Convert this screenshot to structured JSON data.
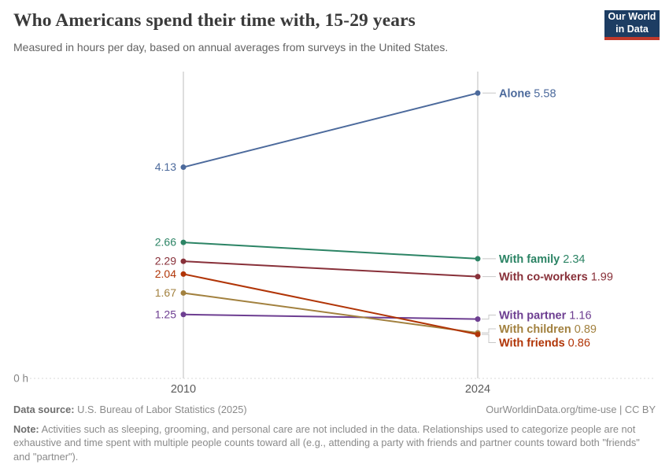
{
  "header": {
    "title": "Who Americans spend their time with, 15-29 years",
    "subtitle": "Measured in hours per day, based on annual averages from surveys in the United States.",
    "logo": {
      "line1": "Our World",
      "line2": "in Data",
      "bg_color": "#1d3d63",
      "bar_color": "#c0392b"
    }
  },
  "chart_data": {
    "type": "line",
    "x": [
      2010,
      2024
    ],
    "x_tick_labels": [
      "2010",
      "2024"
    ],
    "series": [
      {
        "name": "Alone",
        "values": [
          4.13,
          5.58
        ],
        "color": "#4C6A9C"
      },
      {
        "name": "With family",
        "values": [
          2.66,
          2.34
        ],
        "color": "#2C8465"
      },
      {
        "name": "With co-workers",
        "values": [
          2.29,
          1.99
        ],
        "color": "#883039"
      },
      {
        "name": "With partner",
        "values": [
          1.25,
          1.16
        ],
        "color": "#6D3E91"
      },
      {
        "name": "With children",
        "values": [
          1.67,
          0.89
        ],
        "color": "#A2813F"
      },
      {
        "name": "With friends",
        "values": [
          2.04,
          0.86
        ],
        "color": "#B13507"
      }
    ],
    "ylim": [
      0,
      6
    ],
    "y_zero_label": "0 h",
    "grid": false,
    "legend_position": "right-inline",
    "title": "Who Americans spend their time with, 15-29 years",
    "ylabel": "hours per day"
  },
  "footer": {
    "datasource_label": "Data source:",
    "datasource": "U.S. Bureau of Labor Statistics (2025)",
    "attribution": "OurWorldinData.org/time-use | CC BY",
    "note_label": "Note:",
    "note": "Activities such as sleeping, grooming, and personal care are not included in the data. Relationships used to categorize people are not exhaustive and time spent with multiple people counts toward all (e.g., attending a party with friends and partner counts toward both \"friends\" and \"partner\")."
  }
}
